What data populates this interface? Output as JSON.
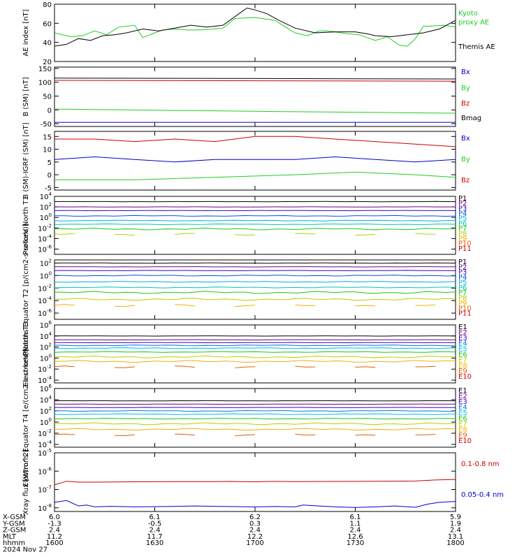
{
  "colors": {
    "black": "#000000",
    "green": "#22cc22",
    "red": "#cc0000",
    "blue": "#0000cc",
    "P": [
      "#000000",
      "#6a0080",
      "#3a00c0",
      "#0055dd",
      "#00aaee",
      "#00c8aa",
      "#11cc11",
      "#bbcc00",
      "#f0b000",
      "#e06000",
      "#cc0000"
    ],
    "E": [
      "#000000",
      "#6a0080",
      "#3a00c0",
      "#0077dd",
      "#00bbee",
      "#11cc11",
      "#bbcc00",
      "#f0b000",
      "#e06000",
      "#cc0000"
    ]
  },
  "chart_data": [
    {
      "type": "line",
      "id": "ae",
      "ylabel": "AE index [nT]",
      "yticks": [
        "80",
        "60",
        "40",
        "20"
      ],
      "ylim": [
        20,
        80
      ],
      "series": [
        {
          "name": "Kyoto proxy AE",
          "color": "green",
          "x": [
            0,
            4,
            7,
            10,
            13,
            16,
            20,
            22,
            25,
            27,
            30,
            33,
            36,
            40,
            42,
            45,
            50,
            55,
            58,
            60,
            63,
            66,
            68,
            70,
            73,
            76,
            80,
            83,
            86,
            88,
            90,
            92,
            94,
            97,
            100
          ],
          "y": [
            50,
            46,
            47,
            52,
            48,
            56,
            58,
            45,
            50,
            53,
            54,
            53,
            53,
            54,
            55,
            65,
            66,
            63,
            55,
            50,
            47,
            52,
            52,
            51,
            49,
            48,
            42,
            46,
            37,
            36,
            44,
            57,
            57,
            58,
            56
          ]
        },
        {
          "name": "Themis AE",
          "color": "black",
          "x": [
            0,
            3,
            6,
            9,
            12,
            15,
            18,
            22,
            26,
            30,
            34,
            38,
            42,
            46,
            48,
            50,
            53,
            56,
            60,
            65,
            70,
            75,
            78,
            80,
            84,
            88,
            92,
            96,
            100
          ],
          "y": [
            36,
            38,
            44,
            42,
            47,
            48,
            50,
            54,
            52,
            55,
            58,
            56,
            58,
            70,
            76,
            74,
            70,
            63,
            55,
            50,
            51,
            51,
            49,
            47,
            46,
            48,
            50,
            54,
            63
          ]
        }
      ]
    },
    {
      "type": "line",
      "id": "bsm",
      "ylabel": "B (SM) [nT]",
      "yticks": [
        "150",
        "100",
        "50",
        "0",
        "-50"
      ],
      "ylim": [
        -60,
        155
      ],
      "series": [
        {
          "name": "Bx",
          "color": "blue",
          "x": [
            0,
            100
          ],
          "y": [
            -45,
            -45
          ]
        },
        {
          "name": "By",
          "color": "green",
          "x": [
            0,
            50,
            100
          ],
          "y": [
            3,
            -5,
            -12
          ]
        },
        {
          "name": "Bz",
          "color": "red",
          "x": [
            0,
            100
          ],
          "y": [
            107,
            104
          ]
        },
        {
          "name": "Bmag",
          "color": "black",
          "x": [
            0,
            100
          ],
          "y": [
            115,
            112
          ]
        }
      ]
    },
    {
      "type": "line",
      "id": "bdiff",
      "ylabel": "B (SM)-IGRF (SM) [nT]",
      "yticks": [
        "15",
        "10",
        "5",
        "0",
        "-5"
      ],
      "ylim": [
        -6,
        17
      ],
      "series": [
        {
          "name": "Bx",
          "color": "blue",
          "x": [
            0,
            10,
            20,
            30,
            40,
            50,
            60,
            70,
            80,
            90,
            100
          ],
          "y": [
            6,
            7,
            6,
            5,
            6,
            6,
            6,
            7,
            6,
            5,
            6
          ]
        },
        {
          "name": "By",
          "color": "green",
          "x": [
            0,
            20,
            40,
            60,
            75,
            90,
            100
          ],
          "y": [
            -2,
            -2,
            -1,
            0,
            1,
            0,
            -1
          ]
        },
        {
          "name": "Bz",
          "color": "red",
          "x": [
            0,
            10,
            20,
            30,
            40,
            50,
            60,
            70,
            80,
            90,
            100
          ],
          "y": [
            14,
            14,
            13,
            14,
            13,
            15,
            15,
            14,
            13,
            12,
            11
          ]
        }
      ]
    },
    {
      "type": "line",
      "id": "pn1",
      "log": true,
      "ylabel": "Protons North T1",
      "yticks": [
        "10^4",
        "10^2",
        "10^0",
        "10^-2",
        "10^-4",
        "10^-6"
      ],
      "ylim": [
        -7,
        4
      ],
      "labels": [
        "P1",
        "P2",
        "P3",
        "P4",
        "P5",
        "P6",
        "P7",
        "P8",
        "P9",
        "P10",
        "P11"
      ],
      "levels": [
        3.0,
        2.0,
        1.3,
        0.3,
        -0.6,
        -1.3,
        -2.2,
        -3.2,
        null,
        null,
        null
      ]
    },
    {
      "type": "line",
      "id": "pe2",
      "log": true,
      "ylabel": "Protons Equator T2 [p/(cm2-s-sr-keV)]",
      "yticks": [
        "10^2",
        "10^0",
        "10^-2",
        "10^-4",
        "10^-6"
      ],
      "ylim": [
        -7,
        2.5
      ],
      "labels": [
        "P1",
        "P2",
        "P3",
        "P4",
        "P5",
        "P6",
        "P7",
        "P8",
        "P9",
        "P10",
        "P11"
      ],
      "levels": [
        2.0,
        1.4,
        0.8,
        0.0,
        -1.0,
        -1.9,
        -2.7,
        -3.8,
        -4.8,
        null,
        null
      ]
    },
    {
      "type": "line",
      "id": "en3",
      "log": true,
      "ylabel": "Electrons North T3",
      "yticks": [
        "10^6",
        "10^4",
        "10^2",
        "10^0",
        "10^-2",
        "10^-4"
      ],
      "ylim": [
        -4.5,
        6
      ],
      "labels": [
        "E1",
        "E2",
        "E3",
        "E4",
        "E5",
        "E6",
        "E7",
        "E8",
        "E9",
        "E10"
      ],
      "levels": [
        4.0,
        3.3,
        2.8,
        2.3,
        1.8,
        1.1,
        0.2,
        -0.6,
        -1.6,
        null
      ]
    },
    {
      "type": "line",
      "id": "ee4",
      "log": true,
      "ylabel": "Electrons Equator T4 [e/(cm2-s-sr-keV)]",
      "yticks": [
        "10^6",
        "10^4",
        "10^2",
        "10^0",
        "10^-2",
        "10^-4"
      ],
      "ylim": [
        -4.5,
        6
      ],
      "labels": [
        "E1",
        "E2",
        "E3",
        "E4",
        "E5",
        "E6",
        "E7",
        "E8",
        "E9",
        "E10"
      ],
      "levels": [
        3.8,
        3.2,
        2.6,
        2.0,
        1.4,
        0.6,
        -0.3,
        -1.3,
        -2.3,
        null
      ]
    },
    {
      "type": "line",
      "id": "xray",
      "log": true,
      "ylabel": "Xray flux [W/m^2]",
      "yticks": [
        "10^-5",
        "10^-6",
        "10^-7",
        "10^-8"
      ],
      "ylim": [
        -8.2,
        -5
      ],
      "series": [
        {
          "name": "0.1-0.8 nm",
          "color": "red",
          "x": [
            0,
            3,
            6,
            10,
            20,
            30,
            40,
            44,
            46,
            50,
            52,
            55,
            60,
            70,
            80,
            90,
            95,
            100
          ],
          "y": [
            -6.75,
            -6.55,
            -6.6,
            -6.6,
            -6.58,
            -6.57,
            -6.57,
            -6.56,
            -6.57,
            -6.58,
            -6.57,
            -6.56,
            -6.57,
            -6.56,
            -6.55,
            -6.54,
            -6.48,
            -6.45
          ]
        },
        {
          "name": "0.05-0.4 nm",
          "color": "blue",
          "x": [
            0,
            3,
            6,
            8,
            10,
            14,
            20,
            28,
            35,
            40,
            50,
            55,
            60,
            62,
            66,
            70,
            75,
            80,
            85,
            90,
            93,
            96,
            100
          ],
          "y": [
            -7.7,
            -7.6,
            -7.9,
            -7.85,
            -7.95,
            -7.92,
            -7.95,
            -7.93,
            -7.9,
            -7.92,
            -7.95,
            -7.93,
            -7.95,
            -7.85,
            -7.9,
            -7.95,
            -7.98,
            -7.95,
            -7.9,
            -7.97,
            -7.8,
            -7.7,
            -7.65
          ]
        }
      ]
    }
  ],
  "legends": {
    "ae": [
      {
        "t": "Kyoto",
        "c": "green"
      },
      {
        "t": "proxy AE",
        "c": "green"
      },
      {
        "t": "Themis AE",
        "c": "black"
      }
    ],
    "bsm": [
      {
        "t": "Bx",
        "c": "blue"
      },
      {
        "t": "By",
        "c": "green"
      },
      {
        "t": "Bz",
        "c": "red"
      },
      {
        "t": "Bmag",
        "c": "black"
      }
    ],
    "bdiff": [
      {
        "t": "Bx",
        "c": "blue"
      },
      {
        "t": "By",
        "c": "green"
      },
      {
        "t": "Bz",
        "c": "red"
      }
    ],
    "xray": [
      {
        "t": "0.1-0.8 nm",
        "c": "red"
      },
      {
        "t": "0.05-0.4 nm",
        "c": "blue"
      }
    ]
  },
  "footer": {
    "rows": [
      {
        "label": "X-GSM",
        "vals": [
          "6.0",
          "6.1",
          "6.2",
          "6.1",
          "5.9"
        ]
      },
      {
        "label": "Y-GSM",
        "vals": [
          "-1.3",
          "-0.5",
          "0.3",
          "1.1",
          "1.9"
        ]
      },
      {
        "label": "Z-GSM",
        "vals": [
          "2.4",
          "2.4",
          "2.4",
          "2.4",
          "2.4"
        ]
      },
      {
        "label": "MLT",
        "vals": [
          "11.2",
          "11.7",
          "12.2",
          "12.6",
          "13.1"
        ]
      },
      {
        "label": "hhmm",
        "vals": [
          "1600",
          "1630",
          "1700",
          "1730",
          "1800"
        ]
      }
    ],
    "date": "2024 Nov 27"
  }
}
